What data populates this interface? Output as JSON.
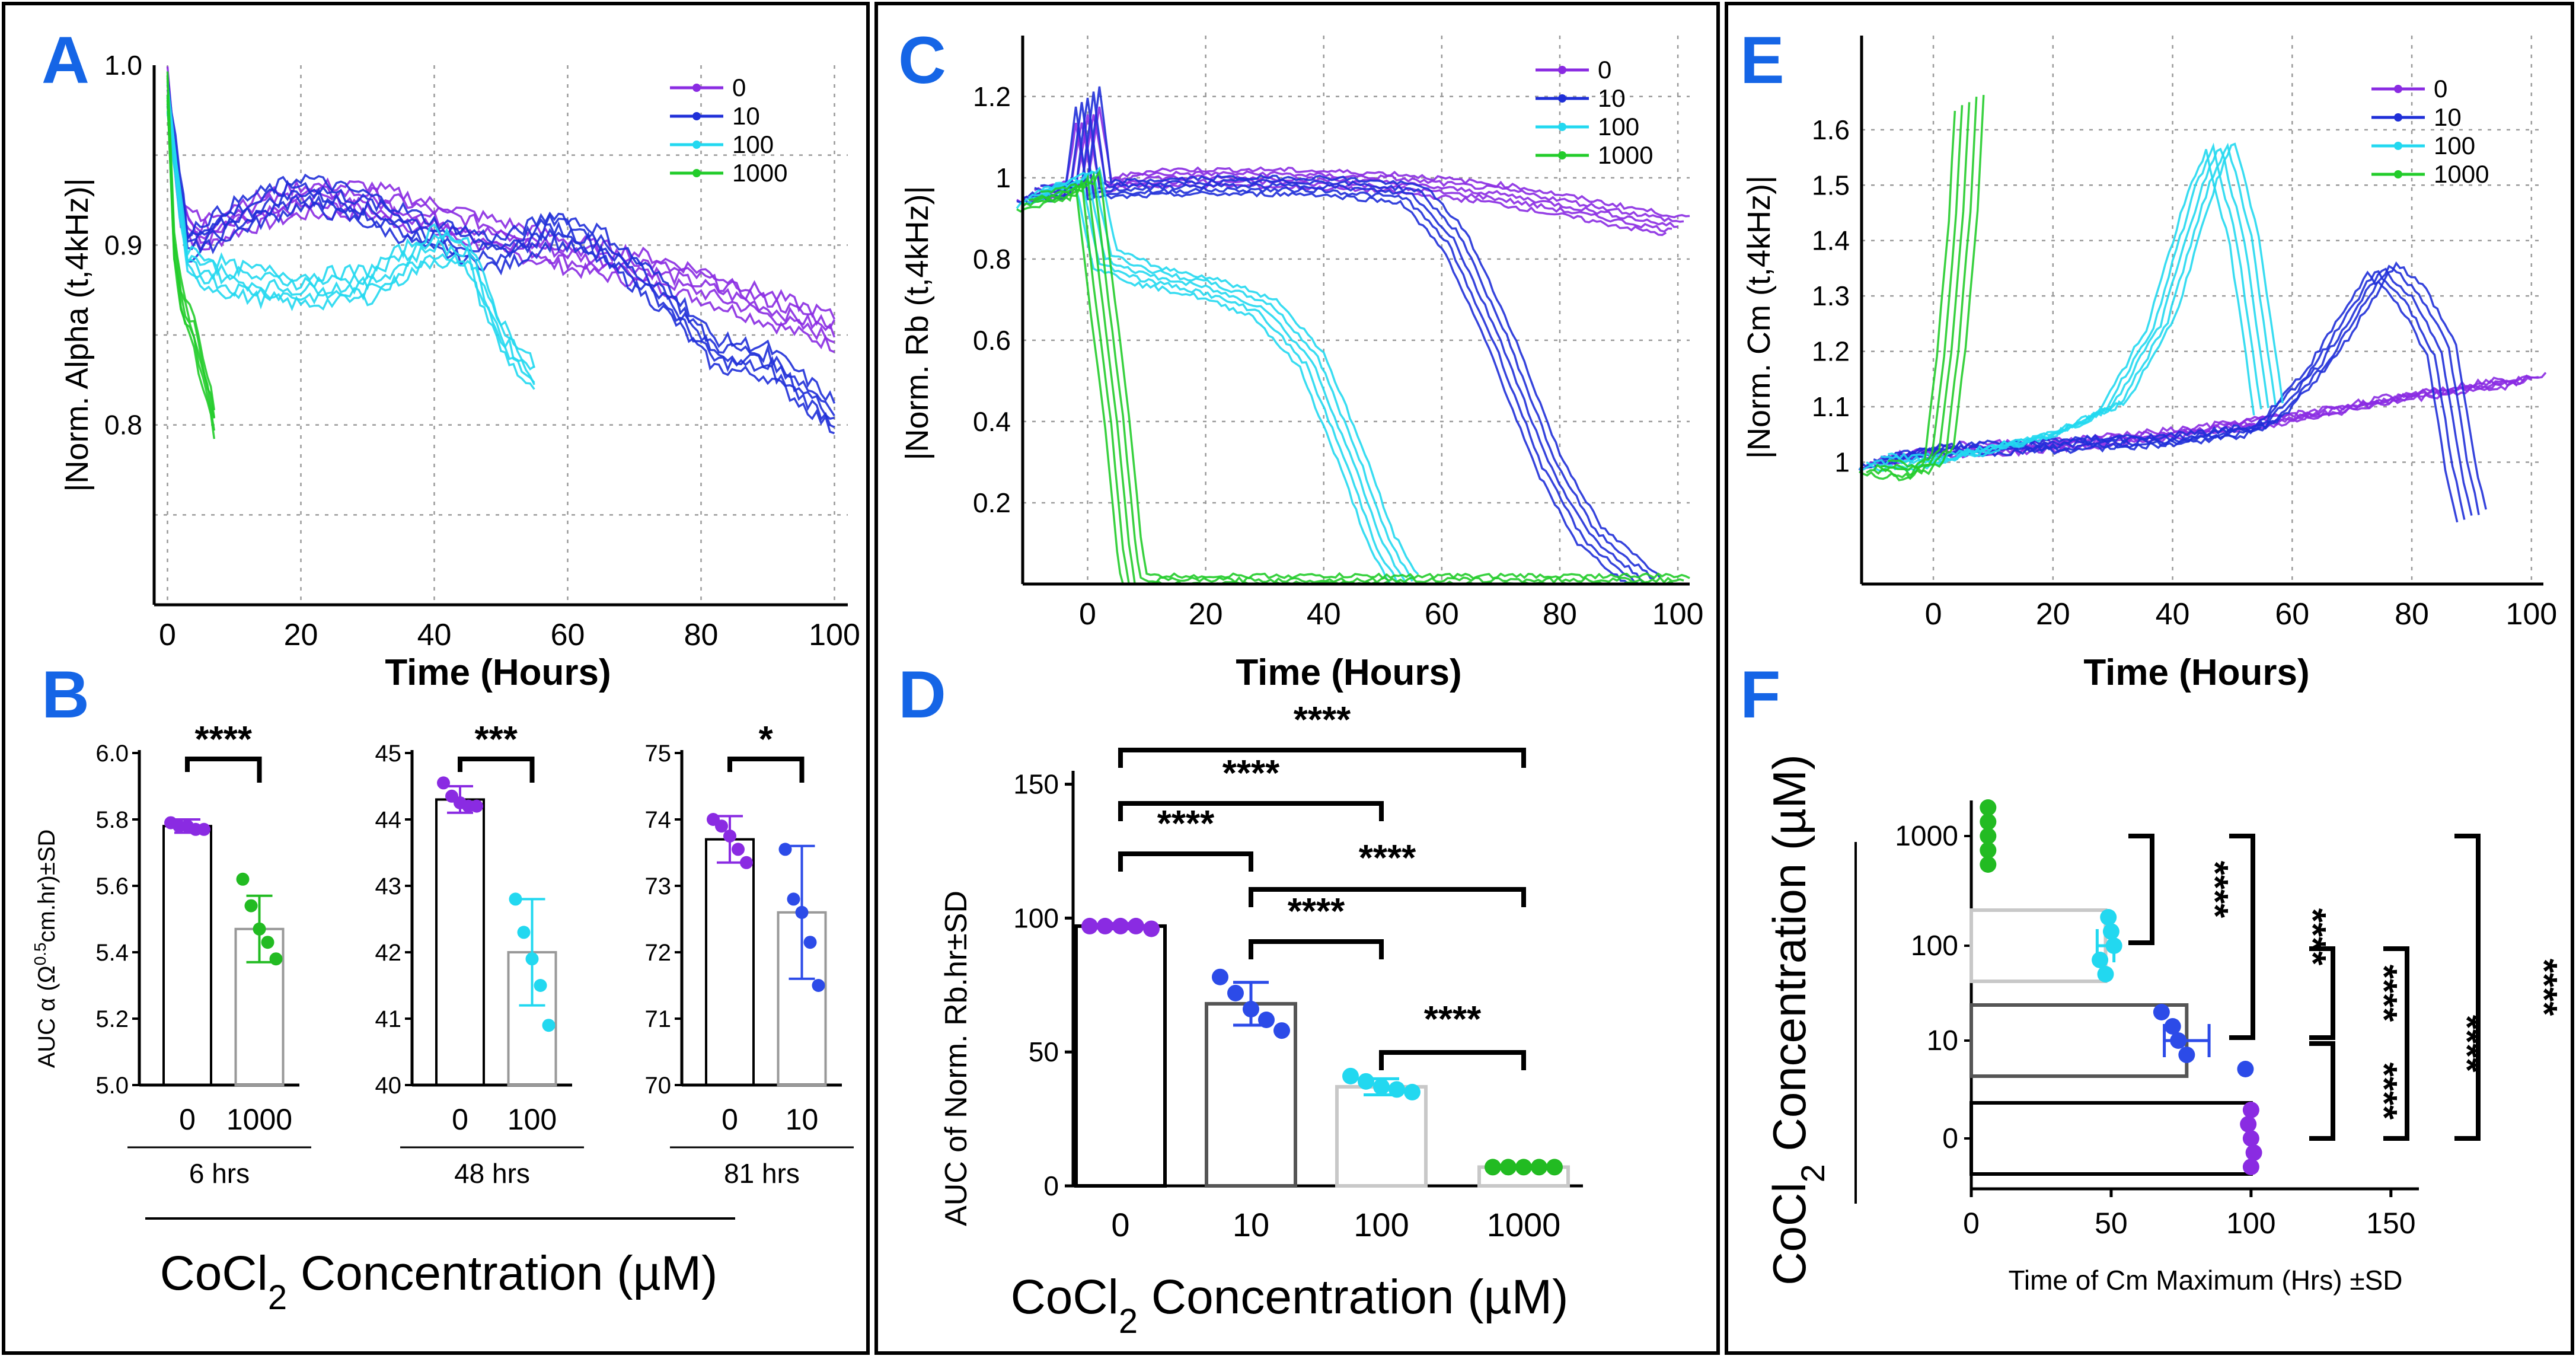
{
  "colors": {
    "c0": "#8a2be2",
    "c10": "#1f2fd8",
    "c100": "#22d8f0",
    "c1000": "#22cc2a",
    "label": "#1565e6",
    "bar0": "#000000",
    "bar10": "#555555",
    "bar100": "#c8c8c8",
    "bar1000": "#c8c8c8",
    "dot0": "#8a2be2",
    "dot10": "#2c4be8",
    "dot100": "#22d8f0",
    "dot1000": "#22bb22"
  },
  "panels": {
    "A": {
      "letter": "A",
      "ylabel": "|Norm. Alpha (t,4kHz)|",
      "xlabel": "Time (Hours)"
    },
    "B": {
      "letter": "B",
      "ylabel": "AUC α (Ω0.5cm.hr)±SD",
      "concentration": "CoCl2 Concentration (µM)"
    },
    "C": {
      "letter": "C",
      "ylabel": "|Norm. Rb (t,4kHz)|",
      "xlabel": "Time (Hours)"
    },
    "D": {
      "letter": "D",
      "ylabel": "AUC of Norm. Rb.hr±SD",
      "concentration": "CoCl2 Concentration (µM)"
    },
    "E": {
      "letter": "E",
      "ylabel": "|Norm. Cm (t,4kHz)|",
      "xlabel": "Time (Hours)"
    },
    "F": {
      "letter": "F",
      "ylabel": "CoCl2 Concentration (µM)",
      "xlabel": "Time of Cm Maximum (Hrs)  ±SD"
    }
  },
  "chart_data": [
    {
      "id": "A",
      "type": "line",
      "title": "",
      "xlabel": "Time (Hours)",
      "ylabel": "|Norm. Alpha (t,4kHz)|",
      "xlim": [
        -2,
        102
      ],
      "ylim": [
        0.7,
        1.0
      ],
      "xticks": [
        0,
        20,
        40,
        60,
        80,
        100
      ],
      "xticklabels": [
        "0",
        "20",
        "40",
        "60",
        "80",
        "100"
      ],
      "yticks": [
        0.8,
        0.9,
        1.0
      ],
      "yticklabels": [
        "0.8",
        "0.9",
        "1.0"
      ],
      "legend": [
        "0",
        "10",
        "100",
        "1000"
      ],
      "legend_position": "top-right",
      "series": [
        {
          "name": "0",
          "color": "#8a2be2",
          "reps": 5,
          "points": [
            [
              0,
              0.99
            ],
            [
              2,
              0.92
            ],
            [
              5,
              0.905
            ],
            [
              10,
              0.915
            ],
            [
              20,
              0.925
            ],
            [
              30,
              0.925
            ],
            [
              40,
              0.915
            ],
            [
              50,
              0.905
            ],
            [
              60,
              0.895
            ],
            [
              70,
              0.888
            ],
            [
              80,
              0.878
            ],
            [
              90,
              0.865
            ],
            [
              100,
              0.852
            ]
          ]
        },
        {
          "name": "10",
          "color": "#1f2fd8",
          "reps": 5,
          "points": [
            [
              0,
              0.985
            ],
            [
              3,
              0.9
            ],
            [
              10,
              0.915
            ],
            [
              20,
              0.93
            ],
            [
              30,
              0.92
            ],
            [
              40,
              0.905
            ],
            [
              50,
              0.895
            ],
            [
              58,
              0.91
            ],
            [
              65,
              0.9
            ],
            [
              75,
              0.87
            ],
            [
              82,
              0.84
            ],
            [
              90,
              0.835
            ],
            [
              100,
              0.805
            ]
          ]
        },
        {
          "name": "100",
          "color": "#22d8f0",
          "reps": 5,
          "points": [
            [
              0,
              0.98
            ],
            [
              3,
              0.89
            ],
            [
              10,
              0.88
            ],
            [
              20,
              0.875
            ],
            [
              30,
              0.878
            ],
            [
              40,
              0.9
            ],
            [
              45,
              0.895
            ],
            [
              50,
              0.85
            ],
            [
              55,
              0.825
            ]
          ]
        },
        {
          "name": "1000",
          "color": "#22cc2a",
          "reps": 5,
          "points": [
            [
              0,
              0.99
            ],
            [
              1,
              0.9
            ],
            [
              2,
              0.87
            ],
            [
              4,
              0.85
            ],
            [
              6,
              0.82
            ],
            [
              7,
              0.8
            ]
          ]
        }
      ]
    },
    {
      "id": "B1",
      "type": "bar",
      "group": "6 hrs",
      "categories": [
        "0",
        "1000"
      ],
      "values": [
        5.78,
        5.47
      ],
      "errors": [
        0.02,
        0.1
      ],
      "points": [
        [
          5.79,
          5.78,
          5.78,
          5.77,
          5.77
        ],
        [
          5.62,
          5.54,
          5.47,
          5.43,
          5.38
        ]
      ],
      "ylim": [
        5.0,
        6.0
      ],
      "yticks": [
        5.0,
        5.2,
        5.4,
        5.6,
        5.8,
        6.0
      ],
      "yticklabels": [
        "5.0",
        "5.2",
        "5.4",
        "5.6",
        "5.8",
        "6.0"
      ],
      "significance": "****"
    },
    {
      "id": "B2",
      "type": "bar",
      "group": "48 hrs",
      "categories": [
        "0",
        "100"
      ],
      "values": [
        44.3,
        42.0
      ],
      "errors": [
        0.2,
        0.8
      ],
      "points": [
        [
          44.55,
          44.35,
          44.25,
          44.2,
          44.2
        ],
        [
          42.8,
          42.3,
          41.9,
          41.5,
          40.9
        ]
      ],
      "ylim": [
        40,
        45
      ],
      "yticks": [
        40,
        41,
        42,
        43,
        44,
        45
      ],
      "yticklabels": [
        "40",
        "41",
        "42",
        "43",
        "44",
        "45"
      ],
      "significance": "***"
    },
    {
      "id": "B3",
      "type": "bar",
      "group": "81 hrs",
      "categories": [
        "0",
        "10"
      ],
      "values": [
        73.7,
        72.6
      ],
      "errors": [
        0.35,
        1.0
      ],
      "points": [
        [
          74.0,
          73.9,
          73.75,
          73.55,
          73.35
        ],
        [
          73.55,
          72.8,
          72.6,
          72.15,
          71.5
        ]
      ],
      "ylim": [
        70,
        75
      ],
      "yticks": [
        70,
        71,
        72,
        73,
        74,
        75
      ],
      "yticklabels": [
        "70",
        "71",
        "72",
        "73",
        "74",
        "75"
      ],
      "significance": "*"
    },
    {
      "id": "C",
      "type": "line",
      "title": "",
      "xlabel": "Time (Hours)",
      "ylabel": "|Norm. Rb (t,4kHz)|",
      "xlim": [
        -11,
        102
      ],
      "ylim": [
        0,
        1.35
      ],
      "xticks": [
        0,
        20,
        40,
        60,
        80,
        100
      ],
      "xticklabels": [
        "0",
        "20",
        "40",
        "60",
        "80",
        "100"
      ],
      "yticks": [
        0.2,
        0.4,
        0.6,
        0.8,
        1.0,
        1.2
      ],
      "yticklabels": [
        "0.2",
        "0.4",
        "0.6",
        "0.8",
        "1",
        "1.2"
      ],
      "legend": [
        "0",
        "10",
        "100",
        "1000"
      ],
      "legend_position": "top-right",
      "series": [
        {
          "name": "0",
          "color": "#8a2be2",
          "reps": 5,
          "points": [
            [
              -10,
              0.96
            ],
            [
              -2,
              0.97
            ],
            [
              0,
              1.15
            ],
            [
              2,
              0.98
            ],
            [
              10,
              1.0
            ],
            [
              30,
              1.0
            ],
            [
              50,
              0.99
            ],
            [
              70,
              0.96
            ],
            [
              85,
              0.92
            ],
            [
              100,
              0.88
            ]
          ]
        },
        {
          "name": "10",
          "color": "#1f2fd8",
          "reps": 5,
          "points": [
            [
              -10,
              0.96
            ],
            [
              -2,
              0.97
            ],
            [
              0,
              1.2
            ],
            [
              2,
              0.97
            ],
            [
              20,
              0.98
            ],
            [
              40,
              0.98
            ],
            [
              55,
              0.96
            ],
            [
              62,
              0.85
            ],
            [
              70,
              0.6
            ],
            [
              78,
              0.3
            ],
            [
              85,
              0.12
            ],
            [
              95,
              0.0
            ]
          ]
        },
        {
          "name": "100",
          "color": "#22d8f0",
          "reps": 5,
          "points": [
            [
              -10,
              0.95
            ],
            [
              0,
              1.0
            ],
            [
              3,
              0.8
            ],
            [
              10,
              0.76
            ],
            [
              20,
              0.73
            ],
            [
              30,
              0.68
            ],
            [
              38,
              0.55
            ],
            [
              45,
              0.3
            ],
            [
              50,
              0.1
            ],
            [
              54,
              0.0
            ]
          ]
        },
        {
          "name": "1000",
          "color": "#22cc2a",
          "reps": 5,
          "points": [
            [
              -10,
              0.94
            ],
            [
              -1,
              0.97
            ],
            [
              0,
              1.0
            ],
            [
              2,
              0.75
            ],
            [
              5,
              0.4
            ],
            [
              7,
              0.1
            ],
            [
              8,
              0.0
            ],
            [
              100,
              0.0
            ]
          ]
        }
      ]
    },
    {
      "id": "D",
      "type": "bar",
      "title": "",
      "ylabel": "AUC of Norm. Rb.hr±SD",
      "xlabel": "CoCl2 Concentration (µM)",
      "categories": [
        "0",
        "10",
        "100",
        "1000"
      ],
      "values": [
        97,
        68,
        37,
        7
      ],
      "errors": [
        1,
        8,
        3,
        0.5
      ],
      "points": [
        [
          97,
          97,
          97,
          97,
          96
        ],
        [
          78,
          72,
          66,
          62,
          58
        ],
        [
          41,
          39,
          37,
          36,
          35
        ],
        [
          7,
          7,
          7,
          7,
          7
        ]
      ],
      "ylim": [
        0,
        155
      ],
      "yticks": [
        0,
        50,
        100,
        150
      ],
      "yticklabels": [
        "0",
        "50",
        "100",
        "150"
      ],
      "comparisons": [
        [
          "0",
          "10",
          "****"
        ],
        [
          "0",
          "100",
          "****"
        ],
        [
          "0",
          "1000",
          "****"
        ],
        [
          "10",
          "100",
          "****"
        ],
        [
          "10",
          "1000",
          "****"
        ],
        [
          "100",
          "1000",
          "****"
        ]
      ]
    },
    {
      "id": "E",
      "type": "line",
      "title": "",
      "xlabel": "Time (Hours)",
      "ylabel": "|Norm. Cm (t,4kHz)|",
      "xlim": [
        -12,
        102
      ],
      "ylim": [
        0.78,
        1.77
      ],
      "xticks": [
        0,
        20,
        40,
        60,
        80,
        100
      ],
      "xticklabels": [
        "0",
        "20",
        "40",
        "60",
        "80",
        "100"
      ],
      "yticks": [
        1.0,
        1.1,
        1.2,
        1.3,
        1.4,
        1.5,
        1.6
      ],
      "yticklabels": [
        "1",
        "1.1",
        "1.2",
        "1.3",
        "1.4",
        "1.5",
        "1.6"
      ],
      "legend": [
        "0",
        "10",
        "100",
        "1000"
      ],
      "legend_position": "top-right",
      "series": [
        {
          "name": "0",
          "color": "#8a2be2",
          "reps": 5,
          "points": [
            [
              -10,
              1.0
            ],
            [
              0,
              1.02
            ],
            [
              20,
              1.03
            ],
            [
              40,
              1.05
            ],
            [
              60,
              1.08
            ],
            [
              80,
              1.12
            ],
            [
              100,
              1.15
            ]
          ]
        },
        {
          "name": "10",
          "color": "#1f2fd8",
          "reps": 5,
          "points": [
            [
              -10,
              1.0
            ],
            [
              0,
              1.02
            ],
            [
              20,
              1.03
            ],
            [
              40,
              1.04
            ],
            [
              55,
              1.06
            ],
            [
              65,
              1.18
            ],
            [
              75,
              1.35
            ],
            [
              80,
              1.3
            ],
            [
              85,
              1.2
            ],
            [
              88,
              1.0
            ],
            [
              90,
              0.9
            ]
          ]
        },
        {
          "name": "100",
          "color": "#22d8f0",
          "reps": 5,
          "points": [
            [
              -10,
              1.0
            ],
            [
              0,
              1.0
            ],
            [
              20,
              1.05
            ],
            [
              30,
              1.1
            ],
            [
              38,
              1.25
            ],
            [
              45,
              1.5
            ],
            [
              48,
              1.57
            ],
            [
              52,
              1.4
            ],
            [
              56,
              1.1
            ]
          ]
        },
        {
          "name": "1000",
          "color": "#22cc2a",
          "reps": 5,
          "points": [
            [
              -10,
              0.99
            ],
            [
              -2,
              0.98
            ],
            [
              1,
              1.02
            ],
            [
              3,
              1.2
            ],
            [
              5,
              1.45
            ],
            [
              6,
              1.65
            ]
          ]
        }
      ]
    },
    {
      "id": "F",
      "type": "bar",
      "orientation": "horizontal",
      "title": "",
      "ylabel": "CoCl2 Concentration (µM)",
      "xlabel": "Time of Cm Maximum (Hrs)  ±SD",
      "categories": [
        "1000",
        "100",
        "10",
        "0"
      ],
      "values": [
        6,
        48,
        77,
        100
      ],
      "errors": [
        0.5,
        3,
        8,
        1
      ],
      "points": [
        [
          6,
          6,
          6,
          6,
          6
        ],
        [
          49,
          50,
          51,
          46,
          48
        ],
        [
          68,
          72,
          74,
          77,
          98
        ],
        [
          100,
          99,
          100,
          101,
          100
        ]
      ],
      "xlim": [
        0,
        160
      ],
      "xticks": [
        0,
        50,
        100,
        150
      ],
      "xticklabels": [
        "0",
        "50",
        "100",
        "150"
      ],
      "comparisons": [
        [
          "1000",
          "100",
          "****"
        ],
        [
          "1000",
          "10",
          "****"
        ],
        [
          "1000",
          "0",
          "****"
        ],
        [
          "100",
          "10",
          "****"
        ],
        [
          "100",
          "0",
          "****"
        ],
        [
          "10",
          "0",
          "****"
        ]
      ]
    }
  ],
  "text": {
    "legend_labels": [
      "0",
      "10",
      "100",
      "1000"
    ],
    "B_groups": [
      "6 hrs",
      "48 hrs",
      "81 hrs"
    ],
    "B_sig": [
      "****",
      "***",
      "*"
    ],
    "D_sig": [
      "****",
      "****",
      "****",
      "****",
      "****",
      "****"
    ],
    "F_sig": [
      "****",
      "****",
      "****",
      "****",
      "****",
      "****"
    ]
  }
}
